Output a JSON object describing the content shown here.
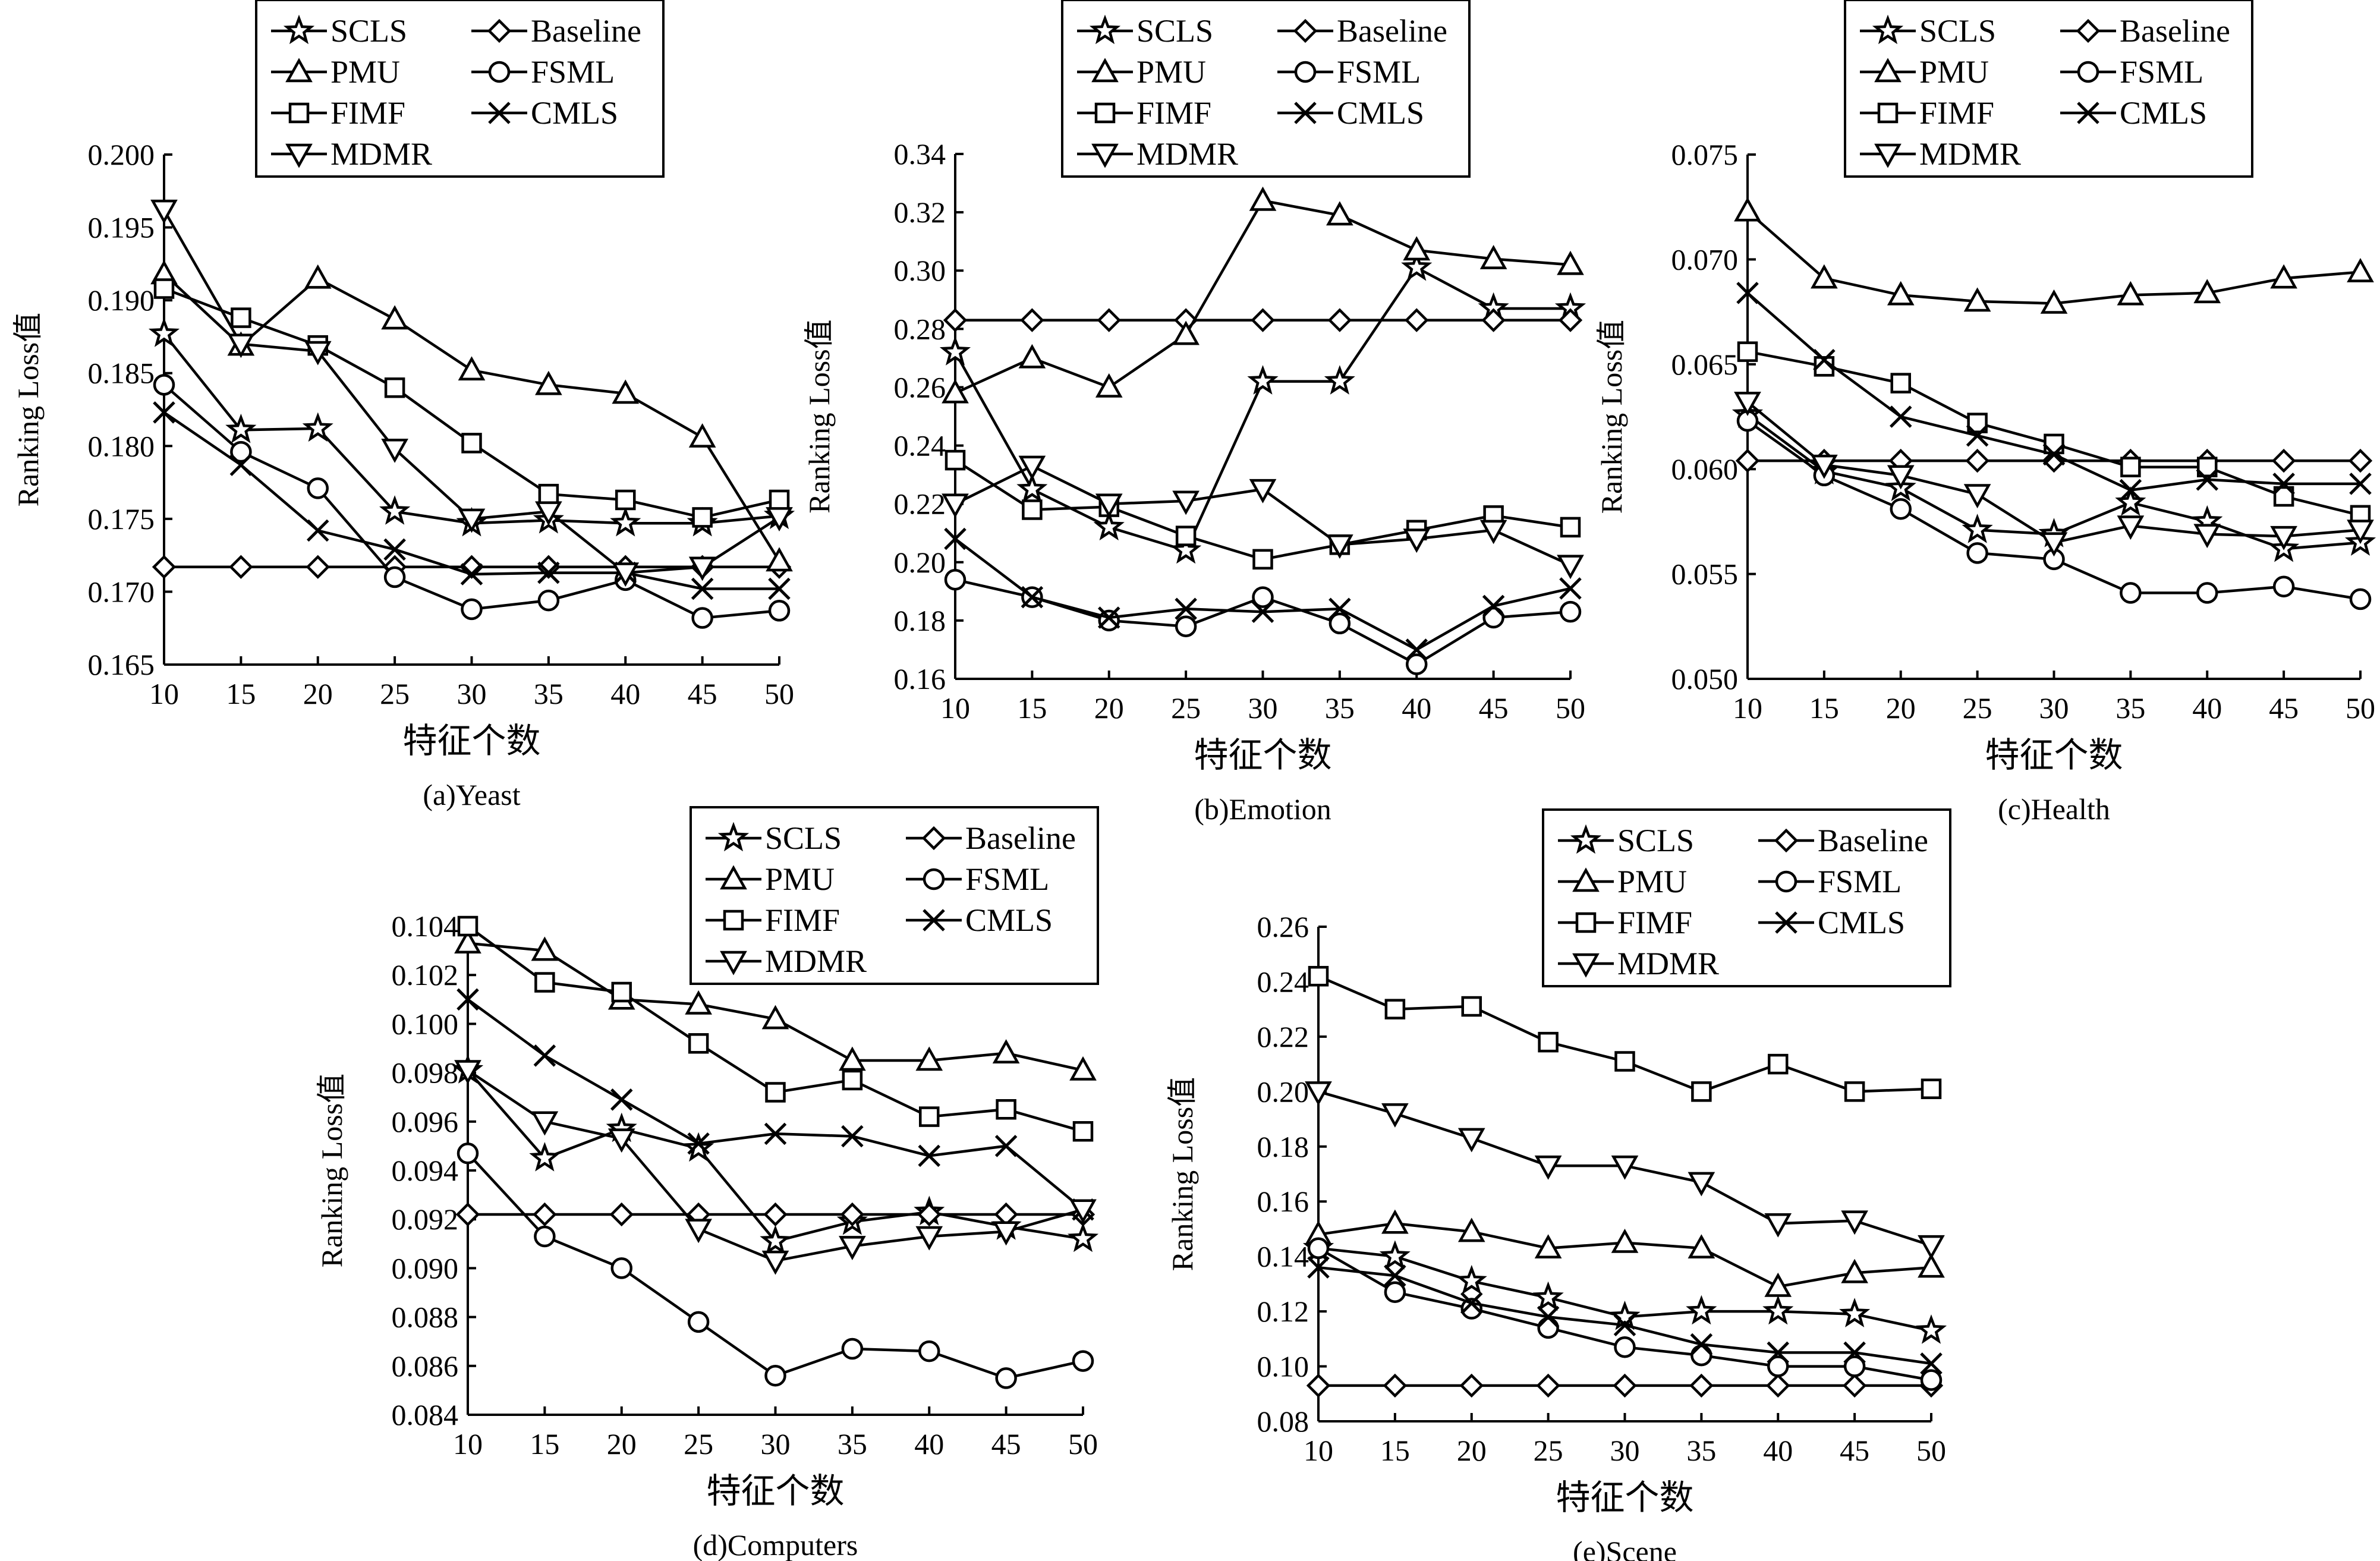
{
  "markers": {
    "SCLS": "star",
    "Baseline": "diamond",
    "PMU": "triangle-up",
    "FSML": "circle",
    "FIMF": "square",
    "CMLS": "x",
    "MDMR": "triangle-down"
  },
  "chart_data": [
    {
      "type": "line",
      "title": "(a)Yeast",
      "xlabel": "特征个数",
      "ylabel": "Ranking Loss值",
      "x": [
        10,
        15,
        20,
        25,
        30,
        35,
        40,
        45,
        50
      ],
      "xticks": [
        "10",
        "15",
        "20",
        "25",
        "30",
        "35",
        "40",
        "45",
        "50"
      ],
      "ylim": [
        0.165,
        0.2
      ],
      "yticks": [
        "0.165",
        "0.170",
        "0.175",
        "0.180",
        "0.185",
        "0.190",
        "0.195",
        "0.200"
      ],
      "legend_position": "top-center",
      "series": [
        {
          "name": "SCLS",
          "values": [
            0.1877,
            0.1811,
            0.1812,
            0.1755,
            0.1747,
            0.1749,
            0.1747,
            0.1747,
            0.1752
          ]
        },
        {
          "name": "Baseline",
          "values": [
            0.1717,
            0.1717,
            0.1717,
            0.1717,
            0.1717,
            0.1717,
            0.1717,
            0.1717,
            0.1717
          ]
        },
        {
          "name": "PMU",
          "values": [
            0.1918,
            0.1869,
            0.1915,
            0.1887,
            0.1852,
            0.1842,
            0.1836,
            0.1806,
            0.1721
          ]
        },
        {
          "name": "FSML",
          "values": [
            0.1842,
            0.1796,
            0.1771,
            0.171,
            0.1688,
            0.1694,
            0.1708,
            0.1682,
            0.1687
          ]
        },
        {
          "name": "FIMF",
          "values": [
            0.1908,
            0.1888,
            0.1869,
            0.184,
            0.1802,
            0.1767,
            0.1763,
            0.1751,
            0.1763
          ]
        },
        {
          "name": "CMLS",
          "values": [
            0.1823,
            0.1787,
            0.1742,
            0.1729,
            0.1712,
            0.1713,
            0.1713,
            0.1702,
            0.1702
          ]
        },
        {
          "name": "MDMR",
          "values": [
            0.1962,
            0.187,
            0.1865,
            0.1798,
            0.175,
            0.1755,
            0.1713,
            0.1717,
            0.1751
          ]
        }
      ]
    },
    {
      "type": "line",
      "title": "(b)Emotion",
      "xlabel": "特征个数",
      "ylabel": "Ranking Loss值",
      "x": [
        10,
        15,
        20,
        25,
        30,
        35,
        40,
        45,
        50
      ],
      "xticks": [
        "10",
        "15",
        "20",
        "25",
        "30",
        "35",
        "40",
        "45",
        "50"
      ],
      "ylim": [
        0.16,
        0.34
      ],
      "yticks": [
        "0.16",
        "0.18",
        "0.20",
        "0.22",
        "0.24",
        "0.26",
        "0.28",
        "0.30",
        "0.32",
        "0.34"
      ],
      "legend_position": "top-center",
      "series": [
        {
          "name": "SCLS",
          "values": [
            0.272,
            0.225,
            0.212,
            0.204,
            0.262,
            0.262,
            0.301,
            0.287,
            0.287
          ]
        },
        {
          "name": "Baseline",
          "values": [
            0.283,
            0.283,
            0.283,
            0.283,
            0.283,
            0.283,
            0.283,
            0.283,
            0.283
          ]
        },
        {
          "name": "PMU",
          "values": [
            0.258,
            0.27,
            0.26,
            0.278,
            0.324,
            0.319,
            0.307,
            0.304,
            0.302
          ]
        },
        {
          "name": "FSML",
          "values": [
            0.194,
            0.188,
            0.18,
            0.178,
            0.188,
            0.179,
            0.165,
            0.181,
            0.183
          ]
        },
        {
          "name": "FIMF",
          "values": [
            0.235,
            0.218,
            0.219,
            0.209,
            0.201,
            0.206,
            0.211,
            0.216,
            0.212
          ]
        },
        {
          "name": "CMLS",
          "values": [
            0.208,
            0.188,
            0.181,
            0.184,
            0.183,
            0.184,
            0.17,
            0.185,
            0.191
          ]
        },
        {
          "name": "MDMR",
          "values": [
            0.22,
            0.233,
            0.22,
            0.221,
            0.225,
            0.206,
            0.208,
            0.211,
            0.199
          ]
        }
      ]
    },
    {
      "type": "line",
      "title": "(c)Health",
      "xlabel": "特征个数",
      "ylabel": "Ranking Loss值",
      "x": [
        10,
        15,
        20,
        25,
        30,
        35,
        40,
        45,
        50
      ],
      "xticks": [
        "10",
        "15",
        "20",
        "25",
        "30",
        "35",
        "40",
        "45",
        "50"
      ],
      "ylim": [
        0.05,
        0.075
      ],
      "yticks": [
        "0.050",
        "0.055",
        "0.060",
        "0.065",
        "0.070",
        "0.075"
      ],
      "legend_position": "top-center",
      "series": [
        {
          "name": "SCLS",
          "values": [
            0.0626,
            0.0599,
            0.0591,
            0.0571,
            0.0569,
            0.0584,
            0.0575,
            0.0562,
            0.0565
          ]
        },
        {
          "name": "Baseline",
          "values": [
            0.0604,
            0.0604,
            0.0604,
            0.0604,
            0.0604,
            0.0604,
            0.0604,
            0.0604,
            0.0604
          ]
        },
        {
          "name": "PMU",
          "values": [
            0.0723,
            0.0691,
            0.0683,
            0.068,
            0.0679,
            0.0683,
            0.0684,
            0.0691,
            0.0694
          ]
        },
        {
          "name": "FSML",
          "values": [
            0.0623,
            0.0597,
            0.0581,
            0.056,
            0.0557,
            0.0541,
            0.0541,
            0.0544,
            0.0538
          ]
        },
        {
          "name": "FIMF",
          "values": [
            0.0656,
            0.0649,
            0.0641,
            0.0622,
            0.0612,
            0.0601,
            0.0601,
            0.0587,
            0.0578
          ]
        },
        {
          "name": "CMLS",
          "values": [
            0.0684,
            0.0652,
            0.0625,
            0.0616,
            0.0607,
            0.059,
            0.0595,
            0.0593,
            0.0593
          ]
        },
        {
          "name": "MDMR",
          "values": [
            0.0632,
            0.0602,
            0.0597,
            0.0588,
            0.0565,
            0.0573,
            0.0569,
            0.0568,
            0.0571
          ]
        }
      ]
    },
    {
      "type": "line",
      "title": "(d)Computers",
      "xlabel": "特征个数",
      "ylabel": "Ranking Loss值",
      "x": [
        10,
        15,
        20,
        25,
        30,
        35,
        40,
        45,
        50
      ],
      "xticks": [
        "10",
        "15",
        "20",
        "25",
        "30",
        "35",
        "40",
        "45",
        "50"
      ],
      "ylim": [
        0.084,
        0.104
      ],
      "yticks": [
        "0.084",
        "0.086",
        "0.088",
        "0.090",
        "0.092",
        "0.094",
        "0.096",
        "0.098",
        "0.100",
        "0.102",
        "0.104"
      ],
      "legend_position": "top-right",
      "series": [
        {
          "name": "SCLS",
          "values": [
            0.0981,
            0.0945,
            0.0957,
            0.0949,
            0.0911,
            0.0919,
            0.0923,
            0.0917,
            0.0912
          ]
        },
        {
          "name": "Baseline",
          "values": [
            0.0922,
            0.0922,
            0.0922,
            0.0922,
            0.0922,
            0.0922,
            0.0922,
            0.0922,
            0.0922
          ]
        },
        {
          "name": "PMU",
          "values": [
            0.1033,
            0.103,
            0.101,
            0.1008,
            0.1002,
            0.0985,
            0.0985,
            0.0988,
            0.0981
          ]
        },
        {
          "name": "FSML",
          "values": [
            0.0947,
            0.0913,
            0.09,
            0.0878,
            0.0856,
            0.0867,
            0.0866,
            0.0855,
            0.0862
          ]
        },
        {
          "name": "FIMF",
          "values": [
            0.104,
            0.1017,
            0.1013,
            0.0992,
            0.0972,
            0.0977,
            0.0962,
            0.0965,
            0.0956
          ]
        },
        {
          "name": "CMLS",
          "values": [
            0.101,
            0.0987,
            0.0969,
            0.0951,
            0.0955,
            0.0954,
            0.0946,
            0.095,
            0.0924
          ]
        },
        {
          "name": "MDMR",
          "values": [
            0.0981,
            0.096,
            0.0953,
            0.0916,
            0.0903,
            0.0909,
            0.0913,
            0.0915,
            0.0924
          ]
        }
      ]
    },
    {
      "type": "line",
      "title": "(e)Scene",
      "xlabel": "特征个数",
      "ylabel": "Ranking Loss值",
      "x": [
        10,
        15,
        20,
        25,
        30,
        35,
        40,
        45,
        50
      ],
      "xticks": [
        "10",
        "15",
        "20",
        "25",
        "30",
        "35",
        "40",
        "45",
        "50"
      ],
      "ylim": [
        0.08,
        0.26
      ],
      "yticks": [
        "0.08",
        "0.10",
        "0.12",
        "0.14",
        "0.16",
        "0.18",
        "0.20",
        "0.22",
        "0.24",
        "0.26"
      ],
      "legend_position": "top-center",
      "series": [
        {
          "name": "SCLS",
          "values": [
            0.143,
            0.14,
            0.131,
            0.125,
            0.118,
            0.12,
            0.12,
            0.119,
            0.113
          ]
        },
        {
          "name": "Baseline",
          "values": [
            0.093,
            0.093,
            0.093,
            0.093,
            0.093,
            0.093,
            0.093,
            0.093,
            0.093
          ]
        },
        {
          "name": "PMU",
          "values": [
            0.148,
            0.152,
            0.149,
            0.143,
            0.145,
            0.143,
            0.129,
            0.134,
            0.136
          ]
        },
        {
          "name": "FSML",
          "values": [
            0.143,
            0.127,
            0.121,
            0.114,
            0.107,
            0.104,
            0.1,
            0.1,
            0.095
          ]
        },
        {
          "name": "FIMF",
          "values": [
            0.242,
            0.23,
            0.231,
            0.218,
            0.211,
            0.2,
            0.21,
            0.2,
            0.201
          ]
        },
        {
          "name": "CMLS",
          "values": [
            0.136,
            0.133,
            0.123,
            0.118,
            0.115,
            0.108,
            0.105,
            0.105,
            0.101
          ]
        },
        {
          "name": "MDMR",
          "values": [
            0.2,
            0.192,
            0.183,
            0.173,
            0.173,
            0.167,
            0.152,
            0.153,
            0.144
          ]
        }
      ]
    }
  ]
}
